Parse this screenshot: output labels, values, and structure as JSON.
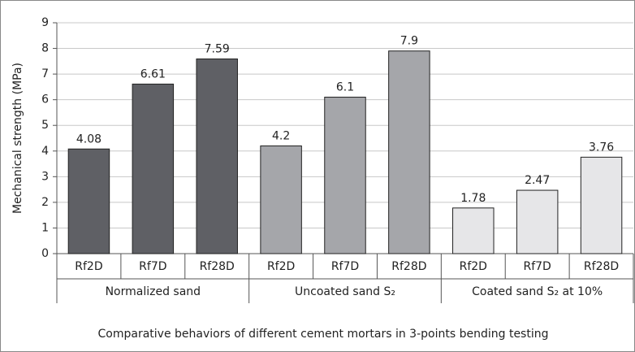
{
  "chart_data": {
    "type": "bar",
    "y_label": "Mechanical strength (MPa)",
    "x_label": "Comparative behaviors of different cement mortars in 3-points bending testing",
    "groups": [
      {
        "name": "Normalized sand",
        "color": "#5f6065",
        "categories": [
          "Rf2D",
          "Rf7D",
          "Rf28D"
        ],
        "values": [
          4.08,
          6.61,
          7.59
        ]
      },
      {
        "name": "Uncoated sand S₂",
        "color": "#a5a6aa",
        "categories": [
          "Rf2D",
          "Rf7D",
          "Rf28D"
        ],
        "values": [
          4.2,
          6.1,
          7.9
        ]
      },
      {
        "name": "Coated sand S₂ at 10%",
        "color": "#e6e6e8",
        "categories": [
          "Rf2D",
          "Rf7D",
          "Rf28D"
        ],
        "values": [
          1.78,
          2.47,
          3.76
        ]
      }
    ],
    "ylim": [
      0,
      9
    ],
    "yticks": [
      0,
      1,
      2,
      3,
      4,
      5,
      6,
      7,
      8,
      9
    ],
    "grid": true
  }
}
